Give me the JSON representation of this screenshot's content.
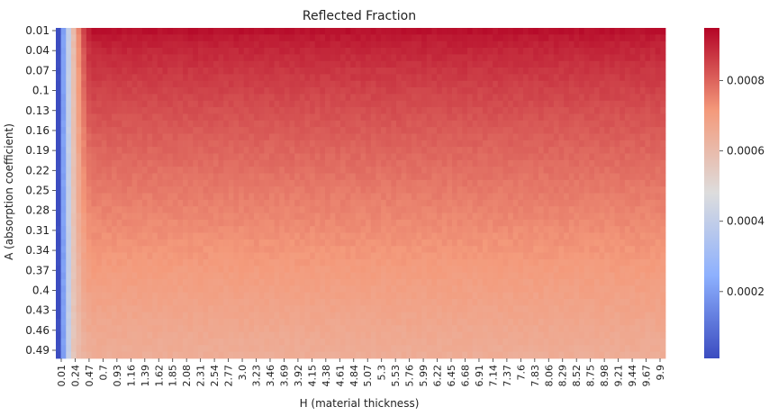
{
  "chart_data": {
    "type": "heatmap",
    "title": "Reflected Fraction",
    "xlabel": "H (material thickness)",
    "ylabel": "A (absorption coefficient)",
    "x_tick_labels": [
      "0.01",
      "0.24",
      "0.47",
      "0.7",
      "0.93",
      "1.16",
      "1.39",
      "1.62",
      "1.85",
      "2.08",
      "2.31",
      "2.54",
      "2.77",
      "3.0",
      "3.23",
      "3.46",
      "3.69",
      "3.92",
      "4.15",
      "4.38",
      "4.61",
      "4.84",
      "5.07",
      "5.3",
      "5.53",
      "5.76",
      "5.99",
      "6.22",
      "6.45",
      "6.68",
      "6.91",
      "7.14",
      "7.37",
      "7.6",
      "7.83",
      "8.06",
      "8.29",
      "8.52",
      "8.75",
      "8.98",
      "9.21",
      "9.44",
      "9.67",
      "9.9"
    ],
    "y_tick_labels": [
      "0.01",
      "0.04",
      "0.07",
      "0.1",
      "0.13",
      "0.16",
      "0.19",
      "0.22",
      "0.25",
      "0.28",
      "0.31",
      "0.34",
      "0.37",
      "0.4",
      "0.43",
      "0.46",
      "0.49"
    ],
    "x_range": [
      0.01,
      9.99
    ],
    "y_range": [
      0.01,
      0.5
    ],
    "colorbar": {
      "range": [
        1e-05,
        0.00095
      ],
      "ticks": [
        0.0002,
        0.0004,
        0.0006,
        0.0008
      ],
      "tick_labels": [
        "0.0002",
        "0.0004",
        "0.0006",
        "0.0008"
      ],
      "colormap": "coolwarm",
      "colormap_stops": [
        "#3b4cc0",
        "#8db0fe",
        "#dddddd",
        "#f49a7b",
        "#b40426"
      ]
    },
    "value_model": {
      "description_of_surface": "rises from near 0 at H=0.01 to plateau by H~0.3; plateau decreases with A",
      "plateau_at_A_min": 0.00093,
      "plateau_at_A_max": 0.00065,
      "value_at_H_min": 1e-05,
      "value_at_H_0.24": 0.00055
    }
  }
}
